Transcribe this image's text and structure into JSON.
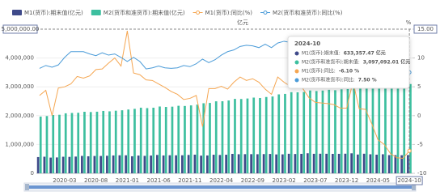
{
  "chart_data": {
    "type": "bar",
    "legend": {
      "position": "top"
    },
    "y_label": "亿元",
    "y2_label": "%",
    "categories": [
      "2019-11",
      "2019-12",
      "2020-01",
      "2020-02",
      "2020-03",
      "2020-04",
      "2020-05",
      "2020-06",
      "2020-07",
      "2020-08",
      "2020-09",
      "2020-10",
      "2020-11",
      "2020-12",
      "2021-01",
      "2021-02",
      "2021-03",
      "2021-04",
      "2021-05",
      "2021-06",
      "2021-07",
      "2021-08",
      "2021-09",
      "2021-10",
      "2021-11",
      "2021-12",
      "2022-01",
      "2022-02",
      "2022-03",
      "2022-04",
      "2022-05",
      "2022-06",
      "2022-07",
      "2022-08",
      "2022-09",
      "2022-10",
      "2022-11",
      "2022-12",
      "2023-01",
      "2023-02",
      "2023-03",
      "2023-04",
      "2023-05",
      "2023-06",
      "2023-07",
      "2023-08",
      "2023-09",
      "2023-10",
      "2023-11",
      "2023-12",
      "2024-01",
      "2024-02",
      "2024-03",
      "2024-04",
      "2024-05",
      "2024-06",
      "2024-07",
      "2024-08",
      "2024-09",
      "2024-10"
    ],
    "xtick_every": 5,
    "xtick_offset": 4,
    "series": [
      {
        "name": "M1(货币):期末值(亿元)",
        "type": "bar",
        "axis": "y",
        "color": "#3f4a8a",
        "values": [
          563900,
          576000,
          545500,
          551000,
          575000,
          570000,
          581000,
          604000,
          591000,
          601000,
          602000,
          609000,
          620000,
          625600,
          625600,
          592000,
          616100,
          605400,
          616800,
          637500,
          620000,
          626600,
          624600,
          626100,
          637500,
          647400,
          613600,
          620000,
          645100,
          636700,
          645100,
          674400,
          661800,
          664600,
          664500,
          662100,
          667000,
          671700,
          655200,
          657900,
          678100,
          669800,
          675300,
          695600,
          677100,
          679600,
          678400,
          674600,
          675800,
          680500,
          693700,
          652000,
          679700,
          660600,
          646700,
          661300,
          632100,
          629800,
          628100,
          633357.47
        ]
      },
      {
        "name": "M2(货币和准货币):期末值(亿元)",
        "type": "bar",
        "axis": "y",
        "color": "#3dbf9f",
        "values": [
          1968800,
          1986500,
          2023100,
          2030800,
          2080900,
          2093500,
          2100200,
          2134900,
          2125500,
          2136800,
          2164100,
          2149700,
          2172000,
          2186800,
          2213000,
          2236000,
          2276200,
          2262100,
          2275500,
          2317800,
          2302500,
          2312300,
          2342800,
          2336200,
          2356000,
          2382900,
          2431000,
          2441500,
          2497700,
          2499700,
          2527100,
          2581500,
          2578100,
          2595100,
          2626400,
          2612900,
          2647100,
          2664300,
          2738100,
          2755200,
          2814600,
          2809500,
          2820500,
          2873000,
          2853700,
          2870900,
          2896700,
          2882300,
          2912600,
          2922700,
          2976200,
          2991300,
          3047900,
          3011900,
          3018700,
          3050200,
          3036700,
          3052400,
          3094900,
          3097092.01
        ]
      },
      {
        "name": "M1(货币):同比(%)",
        "type": "line",
        "axis": "y2",
        "color": "#f5a651",
        "values": [
          3.5,
          4.4,
          0.0,
          4.8,
          5.0,
          5.5,
          6.8,
          6.5,
          6.9,
          8.0,
          8.1,
          9.1,
          10.0,
          8.6,
          14.7,
          7.4,
          7.1,
          6.2,
          6.1,
          5.5,
          4.9,
          4.2,
          3.7,
          2.8,
          3.0,
          3.5,
          -1.9,
          4.7,
          4.7,
          5.1,
          4.6,
          5.8,
          6.7,
          6.1,
          6.4,
          5.8,
          4.6,
          3.7,
          6.7,
          5.8,
          5.1,
          5.3,
          4.7,
          3.1,
          2.3,
          2.2,
          2.1,
          1.9,
          1.3,
          1.3,
          5.9,
          1.2,
          1.1,
          -1.4,
          -4.2,
          -5.0,
          -6.6,
          -7.3,
          -7.4,
          -6.1
        ]
      },
      {
        "name": "M2(货币和准货币):同比(%)",
        "type": "line",
        "axis": "y2",
        "color": "#4a9bd8",
        "values": [
          8.2,
          8.7,
          8.4,
          8.8,
          10.1,
          11.1,
          11.1,
          11.1,
          10.7,
          10.4,
          10.9,
          10.5,
          10.7,
          10.1,
          9.4,
          10.1,
          9.4,
          8.1,
          8.3,
          8.6,
          8.3,
          8.2,
          8.3,
          8.7,
          8.5,
          9.0,
          9.8,
          9.2,
          9.7,
          10.5,
          11.1,
          11.4,
          12.0,
          12.2,
          12.1,
          11.8,
          12.4,
          11.8,
          12.6,
          12.9,
          12.7,
          12.4,
          11.6,
          11.3,
          10.7,
          10.6,
          10.3,
          10.3,
          10.0,
          9.7,
          8.7,
          8.7,
          8.3,
          7.2,
          7.0,
          6.2,
          6.3,
          6.3,
          6.8,
          7.5
        ]
      }
    ],
    "ylim": [
      0,
      5000000
    ],
    "yticks": [
      0,
      {
        "value": 1000000,
        "label": "1,000,000"
      },
      {
        "value": 2000000,
        "label": "2,000,000"
      },
      {
        "value": 3000000,
        "label": "3,000,000"
      },
      {
        "value": 4000000,
        "label": "4,000,000"
      },
      {
        "value": 5000000,
        "label": "5,000,000.00"
      }
    ],
    "y2lim": [
      -10,
      15
    ],
    "y2ticks": [
      -10,
      -5,
      0,
      5,
      10,
      {
        "value": 15,
        "label": "15.00"
      }
    ],
    "tooltip": {
      "title": "2024-10",
      "rows": [
        {
          "label": "M1(货币):期末值:",
          "value": "633,357.47 亿元"
        },
        {
          "label": "M2(货币和准货币):期末值:",
          "value": "3,097,092.01 亿元"
        },
        {
          "label": "M1(货币):同比:",
          "value": "-6.10 %"
        },
        {
          "label": "M2(货币和准货币):同比:",
          "value": "7.50 %"
        }
      ]
    }
  }
}
